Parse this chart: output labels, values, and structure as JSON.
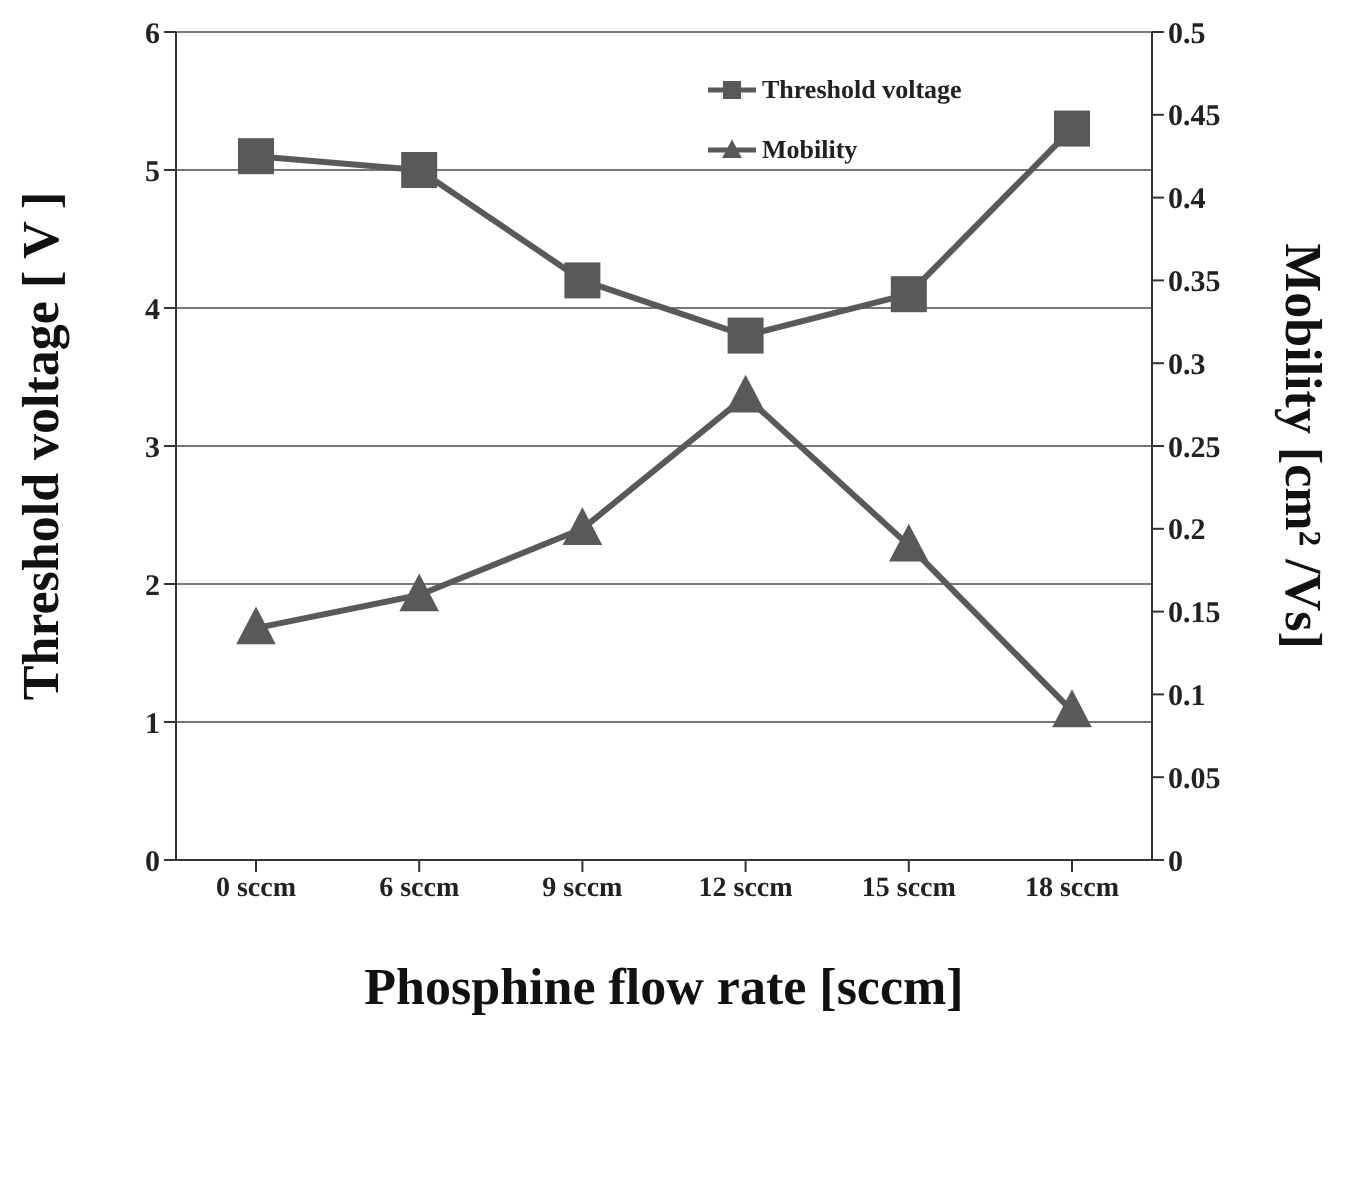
{
  "chart_data": {
    "type": "line",
    "xlabel": "Phosphine flow rate [sccm]",
    "ylabel": "Threshold voltage [ V ]",
    "y2label": "Mobility [cm² /Vs]",
    "categories": [
      "0 sccm",
      "6 sccm",
      "9 sccm",
      "12 sccm",
      "15 sccm",
      "18 sccm"
    ],
    "series": [
      {
        "name": "Threshold voltage",
        "color": "#595959",
        "marker": "square",
        "values": [
          5.1,
          5.0,
          4.2,
          3.8,
          4.1,
          5.3
        ]
      },
      {
        "name": "Mobility",
        "color": "#595959",
        "marker": "triangle",
        "axis": "y2",
        "values": [
          0.14,
          0.16,
          0.2,
          0.28,
          0.19,
          0.09
        ]
      }
    ],
    "ylim": [
      0,
      6
    ],
    "yticks": [
      0,
      1,
      2,
      3,
      4,
      5,
      6
    ],
    "y2lim": [
      0,
      0.5
    ],
    "y2ticks": [
      0,
      0.05,
      0.1,
      0.15,
      0.2,
      0.25,
      0.3,
      0.35,
      0.4,
      0.45,
      0.5
    ],
    "grid": "y",
    "legend": "top right",
    "line_style": "solid"
  }
}
